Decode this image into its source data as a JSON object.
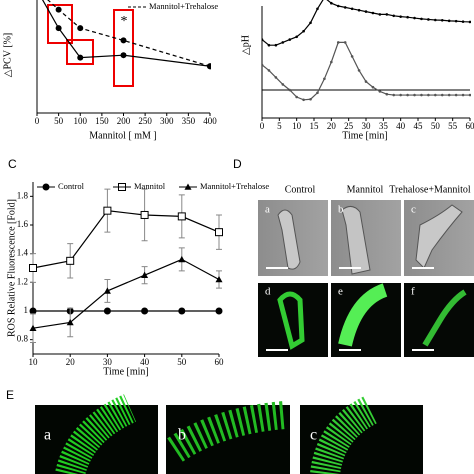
{
  "chart_data": [
    {
      "type": "line",
      "x_label": "Mannitol [ mM ]",
      "y_label": "△PCV [%]",
      "annotation": "*",
      "x": [
        0,
        50,
        100,
        200,
        400
      ],
      "series": [
        {
          "color": "#000000",
          "dash": false,
          "values": [
            100,
            69,
            45,
            47,
            38
          ]
        },
        {
          "name": "Mannitol+Trehalose",
          "color": "#000000",
          "dash": true,
          "values": [
            100,
            84,
            69,
            59,
            38
          ]
        }
      ],
      "xlim": [
        0,
        400
      ],
      "xticks": [
        0,
        50,
        100,
        150,
        200,
        250,
        300,
        350,
        400
      ],
      "ylim": [
        0,
        100
      ]
    },
    {
      "type": "line",
      "x_label": "Time [min]",
      "y_label": "△pH",
      "zero_line": true,
      "x": [
        0,
        2,
        4,
        6,
        8,
        10,
        12,
        14,
        16,
        18,
        20,
        22,
        24,
        26,
        28,
        30,
        32,
        34,
        36,
        38,
        40,
        42,
        44,
        46,
        48,
        50,
        52,
        54,
        56,
        58,
        60
      ],
      "series": [
        {
          "color": "#000000",
          "values": [
            0.18,
            0.16,
            0.16,
            0.17,
            0.18,
            0.19,
            0.21,
            0.24,
            0.29,
            0.33,
            0.31,
            0.3,
            0.295,
            0.29,
            0.285,
            0.28,
            0.275,
            0.27,
            0.27,
            0.265,
            0.262,
            0.26,
            0.257,
            0.254,
            0.252,
            0.25,
            0.249,
            0.247,
            0.246,
            0.244,
            0.243
          ]
        },
        {
          "color": "#555555",
          "values": [
            0.09,
            0.07,
            0.045,
            0.02,
            0,
            -0.025,
            -0.035,
            -0.033,
            -0.01,
            0.04,
            0.1,
            0.17,
            0.17,
            0.12,
            0.07,
            0.03,
            0.01,
            -0.005,
            -0.015,
            -0.018,
            -0.018,
            -0.018,
            -0.018,
            -0.018,
            -0.018,
            -0.018,
            -0.018,
            -0.018,
            -0.018,
            -0.018,
            -0.018
          ]
        }
      ],
      "xlim": [
        0,
        60
      ],
      "xticks": [
        0,
        5,
        10,
        15,
        20,
        25,
        30,
        35,
        40,
        45,
        50,
        55,
        60
      ],
      "ylim": [
        -0.1,
        0.3
      ]
    },
    {
      "type": "line",
      "panel": "C",
      "x_label": "Time [min]",
      "y_label": "ROS Relative Fluorescence [Fold]",
      "x": [
        10,
        20,
        30,
        40,
        50,
        60
      ],
      "series": [
        {
          "name": "Control",
          "marker": "circle",
          "color": "#000000",
          "values": [
            1,
            1,
            1,
            1,
            1,
            1
          ],
          "errors": [
            0,
            0,
            0,
            0,
            0,
            0
          ]
        },
        {
          "name": "Mannitol",
          "marker": "square",
          "color": "#000000",
          "values": [
            1.3,
            1.35,
            1.7,
            1.67,
            1.66,
            1.55
          ],
          "errors": [
            0.1,
            0.12,
            0.15,
            0.18,
            0.15,
            0.12
          ]
        },
        {
          "name": "Mannitol+Trehalose",
          "marker": "triangle",
          "color": "#000000",
          "values": [
            0.88,
            0.92,
            1.14,
            1.25,
            1.36,
            1.22
          ],
          "errors": [
            0.1,
            0.1,
            0.08,
            0.06,
            0.08,
            0.06
          ]
        }
      ],
      "xlim": [
        10,
        60
      ],
      "xticks": [
        10,
        20,
        30,
        40,
        50,
        60
      ],
      "ylim": [
        0.7,
        1.9
      ],
      "yticks": [
        0.8,
        1,
        1.2,
        1.4,
        1.6,
        1.8
      ]
    }
  ],
  "panels": [
    {
      "letter": "D",
      "columns": [
        "Control",
        "Mannitol",
        "Trehalose+Mannitol"
      ],
      "images": [
        "a",
        "b",
        "c",
        "d",
        "e",
        "f"
      ]
    },
    {
      "letter": "E",
      "images": [
        "a",
        "b",
        "c"
      ]
    }
  ]
}
